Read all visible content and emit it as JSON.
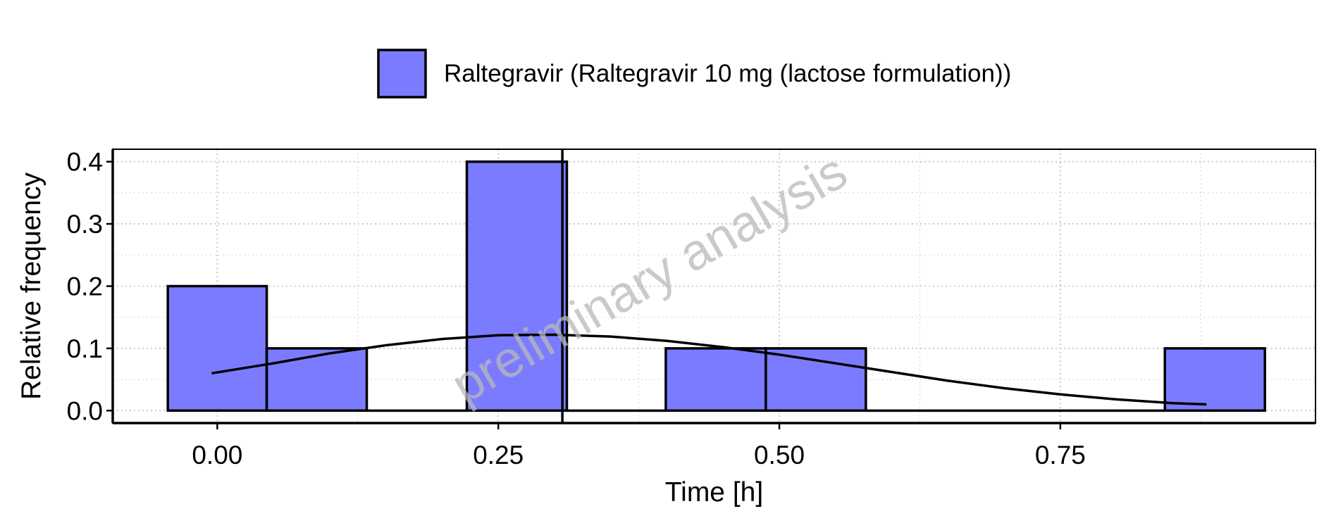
{
  "chart_data": {
    "type": "bar",
    "subtype": "histogram",
    "legend": {
      "position": "top",
      "label": "Raltegravir (Raltegravir 10 mg (lactose formulation))",
      "color": "#7b7bff"
    },
    "xlabel": "Time [h]",
    "ylabel": "Relative frequency",
    "xlim": [
      -0.093,
      0.977
    ],
    "ylim": [
      -0.02,
      0.42
    ],
    "x_ticks": [
      0.0,
      0.25,
      0.5,
      0.75
    ],
    "x_tick_labels": [
      "0.00",
      "0.25",
      "0.50",
      "0.75"
    ],
    "y_ticks": [
      0.0,
      0.1,
      0.2,
      0.3,
      0.4
    ],
    "y_tick_labels": [
      "0.0",
      "0.1",
      "0.2",
      "0.3",
      "0.4"
    ],
    "grid": true,
    "bin_width": 0.0887,
    "bins": [
      {
        "x0": -0.044,
        "x1": 0.044,
        "value": 0.2
      },
      {
        "x0": 0.044,
        "x1": 0.133,
        "value": 0.1
      },
      {
        "x0": 0.133,
        "x1": 0.222,
        "value": 0.0
      },
      {
        "x0": 0.222,
        "x1": 0.311,
        "value": 0.4
      },
      {
        "x0": 0.311,
        "x1": 0.399,
        "value": 0.0
      },
      {
        "x0": 0.399,
        "x1": 0.488,
        "value": 0.1
      },
      {
        "x0": 0.488,
        "x1": 0.577,
        "value": 0.1
      },
      {
        "x0": 0.577,
        "x1": 0.666,
        "value": 0.0
      },
      {
        "x0": 0.666,
        "x1": 0.754,
        "value": 0.0
      },
      {
        "x0": 0.754,
        "x1": 0.843,
        "value": 0.0
      },
      {
        "x0": 0.843,
        "x1": 0.932,
        "value": 0.1
      }
    ],
    "vertical_line_x": 0.307,
    "density_curve": {
      "x": [
        -0.005,
        0.05,
        0.1,
        0.15,
        0.2,
        0.25,
        0.3,
        0.35,
        0.4,
        0.45,
        0.5,
        0.55,
        0.6,
        0.65,
        0.7,
        0.75,
        0.8,
        0.85,
        0.88
      ],
      "y": [
        0.06,
        0.076,
        0.092,
        0.105,
        0.115,
        0.121,
        0.122,
        0.119,
        0.112,
        0.102,
        0.09,
        0.076,
        0.062,
        0.048,
        0.036,
        0.026,
        0.018,
        0.012,
        0.01
      ]
    },
    "watermark": "preliminary analysis"
  }
}
